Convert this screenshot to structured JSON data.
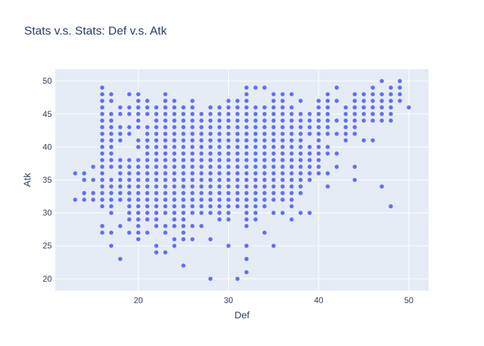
{
  "chart_data": {
    "type": "scatter",
    "title": "Stats v.s. Stats: Def v.s. Atk",
    "xlabel": "Def",
    "ylabel": "Atk",
    "xlim": [
      10.8,
      52.2
    ],
    "ylim": [
      18.2,
      51.8
    ],
    "x_ticks": [
      20,
      30,
      40,
      50
    ],
    "y_ticks": [
      20,
      25,
      30,
      35,
      40,
      45,
      50
    ],
    "grid": true,
    "legend": "none",
    "colors": {
      "plot_bg": "#e5ecf6",
      "grid": "#ffffff",
      "marker": "#636efa",
      "text": "#2a3f5f"
    },
    "columns": [
      {
        "def": 13,
        "atk": [
          32,
          36
        ]
      },
      {
        "def": 14,
        "atk": [
          32,
          33,
          35,
          36
        ]
      },
      {
        "def": 15,
        "atk": [
          32,
          33,
          35,
          37
        ]
      },
      {
        "def": 16,
        "atk": [
          27,
          28,
          31,
          32,
          33,
          34,
          35,
          36,
          37,
          38,
          39,
          40,
          41,
          42,
          43,
          44,
          45,
          46,
          47,
          48,
          49
        ]
      },
      {
        "def": 17,
        "atk": [
          25,
          27,
          30,
          31,
          32,
          33,
          34,
          35,
          37,
          38,
          39,
          40,
          41,
          42,
          43,
          44,
          45,
          47,
          48
        ]
      },
      {
        "def": 18,
        "atk": [
          23,
          28,
          32,
          33,
          34,
          35,
          36,
          37,
          38,
          41,
          42,
          43,
          45,
          46
        ]
      },
      {
        "def": 19,
        "atk": [
          27,
          29,
          30,
          31,
          32,
          33,
          34,
          35,
          36,
          37,
          38,
          42,
          43,
          45,
          46,
          48
        ]
      },
      {
        "def": 20,
        "atk": [
          26,
          27,
          28,
          29,
          30,
          31,
          32,
          33,
          34,
          35,
          36,
          37,
          38,
          40,
          41,
          43,
          44,
          45,
          46,
          47,
          48
        ]
      },
      {
        "def": 21,
        "atk": [
          27,
          29,
          30,
          31,
          32,
          33,
          34,
          35,
          36,
          37,
          38,
          39,
          40,
          41,
          42,
          43,
          45,
          46,
          47
        ]
      },
      {
        "def": 22,
        "atk": [
          24,
          25,
          28,
          29,
          30,
          31,
          32,
          33,
          34,
          35,
          36,
          37,
          38,
          39,
          40,
          41,
          42,
          43,
          44,
          45,
          46
        ]
      },
      {
        "def": 23,
        "atk": [
          24,
          27,
          28,
          30,
          31,
          32,
          33,
          34,
          35,
          36,
          37,
          38,
          39,
          40,
          41,
          42,
          43,
          44,
          45,
          46,
          47,
          48
        ]
      },
      {
        "def": 24,
        "atk": [
          25,
          26,
          28,
          29,
          30,
          31,
          32,
          33,
          34,
          35,
          36,
          37,
          38,
          39,
          40,
          41,
          42,
          43,
          44,
          45,
          46,
          47
        ]
      },
      {
        "def": 25,
        "atk": [
          22,
          26,
          27,
          28,
          29,
          30,
          31,
          32,
          33,
          34,
          35,
          36,
          37,
          38,
          39,
          40,
          41,
          42,
          43,
          44,
          45,
          46
        ]
      },
      {
        "def": 26,
        "atk": [
          26,
          28,
          30,
          31,
          32,
          33,
          34,
          35,
          36,
          37,
          38,
          39,
          40,
          41,
          42,
          43,
          44,
          45,
          46,
          47
        ]
      },
      {
        "def": 27,
        "atk": [
          28,
          30,
          31,
          32,
          33,
          34,
          35,
          36,
          37,
          38,
          39,
          40,
          41,
          42,
          43,
          44,
          45
        ]
      },
      {
        "def": 28,
        "atk": [
          20,
          26,
          30,
          31,
          32,
          33,
          34,
          35,
          36,
          37,
          38,
          39,
          40,
          41,
          42,
          43,
          44,
          45,
          46
        ]
      },
      {
        "def": 29,
        "atk": [
          29,
          30,
          31,
          32,
          33,
          34,
          35,
          36,
          37,
          38,
          39,
          40,
          41,
          42,
          43,
          44,
          45,
          46
        ]
      },
      {
        "def": 30,
        "atk": [
          25,
          29,
          30,
          31,
          32,
          33,
          34,
          35,
          36,
          37,
          38,
          39,
          40,
          41,
          42,
          43,
          44,
          45,
          46,
          47
        ]
      },
      {
        "def": 31,
        "atk": [
          20,
          31,
          32,
          33,
          34,
          35,
          36,
          37,
          38,
          39,
          40,
          41,
          42,
          43,
          44,
          45,
          46,
          47
        ]
      },
      {
        "def": 32,
        "atk": [
          21,
          23,
          25,
          28,
          29,
          30,
          31,
          32,
          33,
          34,
          35,
          36,
          37,
          38,
          39,
          40,
          41,
          42,
          43,
          44,
          45,
          46,
          47,
          48,
          49
        ]
      },
      {
        "def": 33,
        "atk": [
          29,
          30,
          31,
          32,
          33,
          34,
          35,
          36,
          37,
          38,
          39,
          40,
          41,
          42,
          43,
          44,
          45,
          46,
          49
        ]
      },
      {
        "def": 34,
        "atk": [
          27,
          31,
          32,
          33,
          34,
          35,
          36,
          37,
          38,
          39,
          40,
          41,
          42,
          43,
          44,
          45,
          46,
          49
        ]
      },
      {
        "def": 35,
        "atk": [
          25,
          30,
          32,
          33,
          34,
          35,
          36,
          37,
          38,
          39,
          40,
          41,
          42,
          43,
          44,
          45,
          46,
          47,
          48
        ]
      },
      {
        "def": 36,
        "atk": [
          30,
          32,
          33,
          34,
          35,
          36,
          37,
          38,
          39,
          40,
          41,
          42,
          43,
          44,
          45,
          46,
          47,
          48
        ]
      },
      {
        "def": 37,
        "atk": [
          29,
          31,
          32,
          33,
          34,
          35,
          36,
          37,
          38,
          39,
          40,
          41,
          42,
          43,
          44,
          45,
          46,
          48
        ]
      },
      {
        "def": 38,
        "atk": [
          30,
          33,
          34,
          35,
          36,
          37,
          38,
          39,
          40,
          41,
          42,
          43,
          44,
          45,
          47
        ]
      },
      {
        "def": 39,
        "atk": [
          30,
          35,
          36,
          37,
          38,
          39,
          40,
          42,
          43,
          44,
          45
        ]
      },
      {
        "def": 40,
        "atk": [
          36,
          37,
          38,
          39,
          40,
          41,
          42,
          43,
          44,
          45,
          46,
          47
        ]
      },
      {
        "def": 41,
        "atk": [
          34,
          36,
          39,
          40,
          42,
          43,
          44,
          45,
          46,
          47,
          48
        ]
      },
      {
        "def": 42,
        "atk": [
          37,
          39,
          42,
          44,
          47,
          49
        ]
      },
      {
        "def": 43,
        "atk": [
          41,
          42,
          43,
          44,
          45,
          46
        ]
      },
      {
        "def": 44,
        "atk": [
          35,
          37,
          42,
          43,
          44,
          45,
          46,
          47,
          48
        ]
      },
      {
        "def": 45,
        "atk": [
          41,
          44,
          45,
          46,
          47,
          48
        ]
      },
      {
        "def": 46,
        "atk": [
          41,
          44,
          45,
          46,
          47,
          48,
          49
        ]
      },
      {
        "def": 47,
        "atk": [
          34,
          44,
          45,
          46,
          47,
          48,
          50
        ]
      },
      {
        "def": 48,
        "atk": [
          31,
          44,
          45,
          46,
          47,
          48,
          49
        ]
      },
      {
        "def": 49,
        "atk": [
          47,
          48,
          49,
          50
        ]
      },
      {
        "def": 50,
        "atk": [
          46
        ]
      }
    ]
  }
}
